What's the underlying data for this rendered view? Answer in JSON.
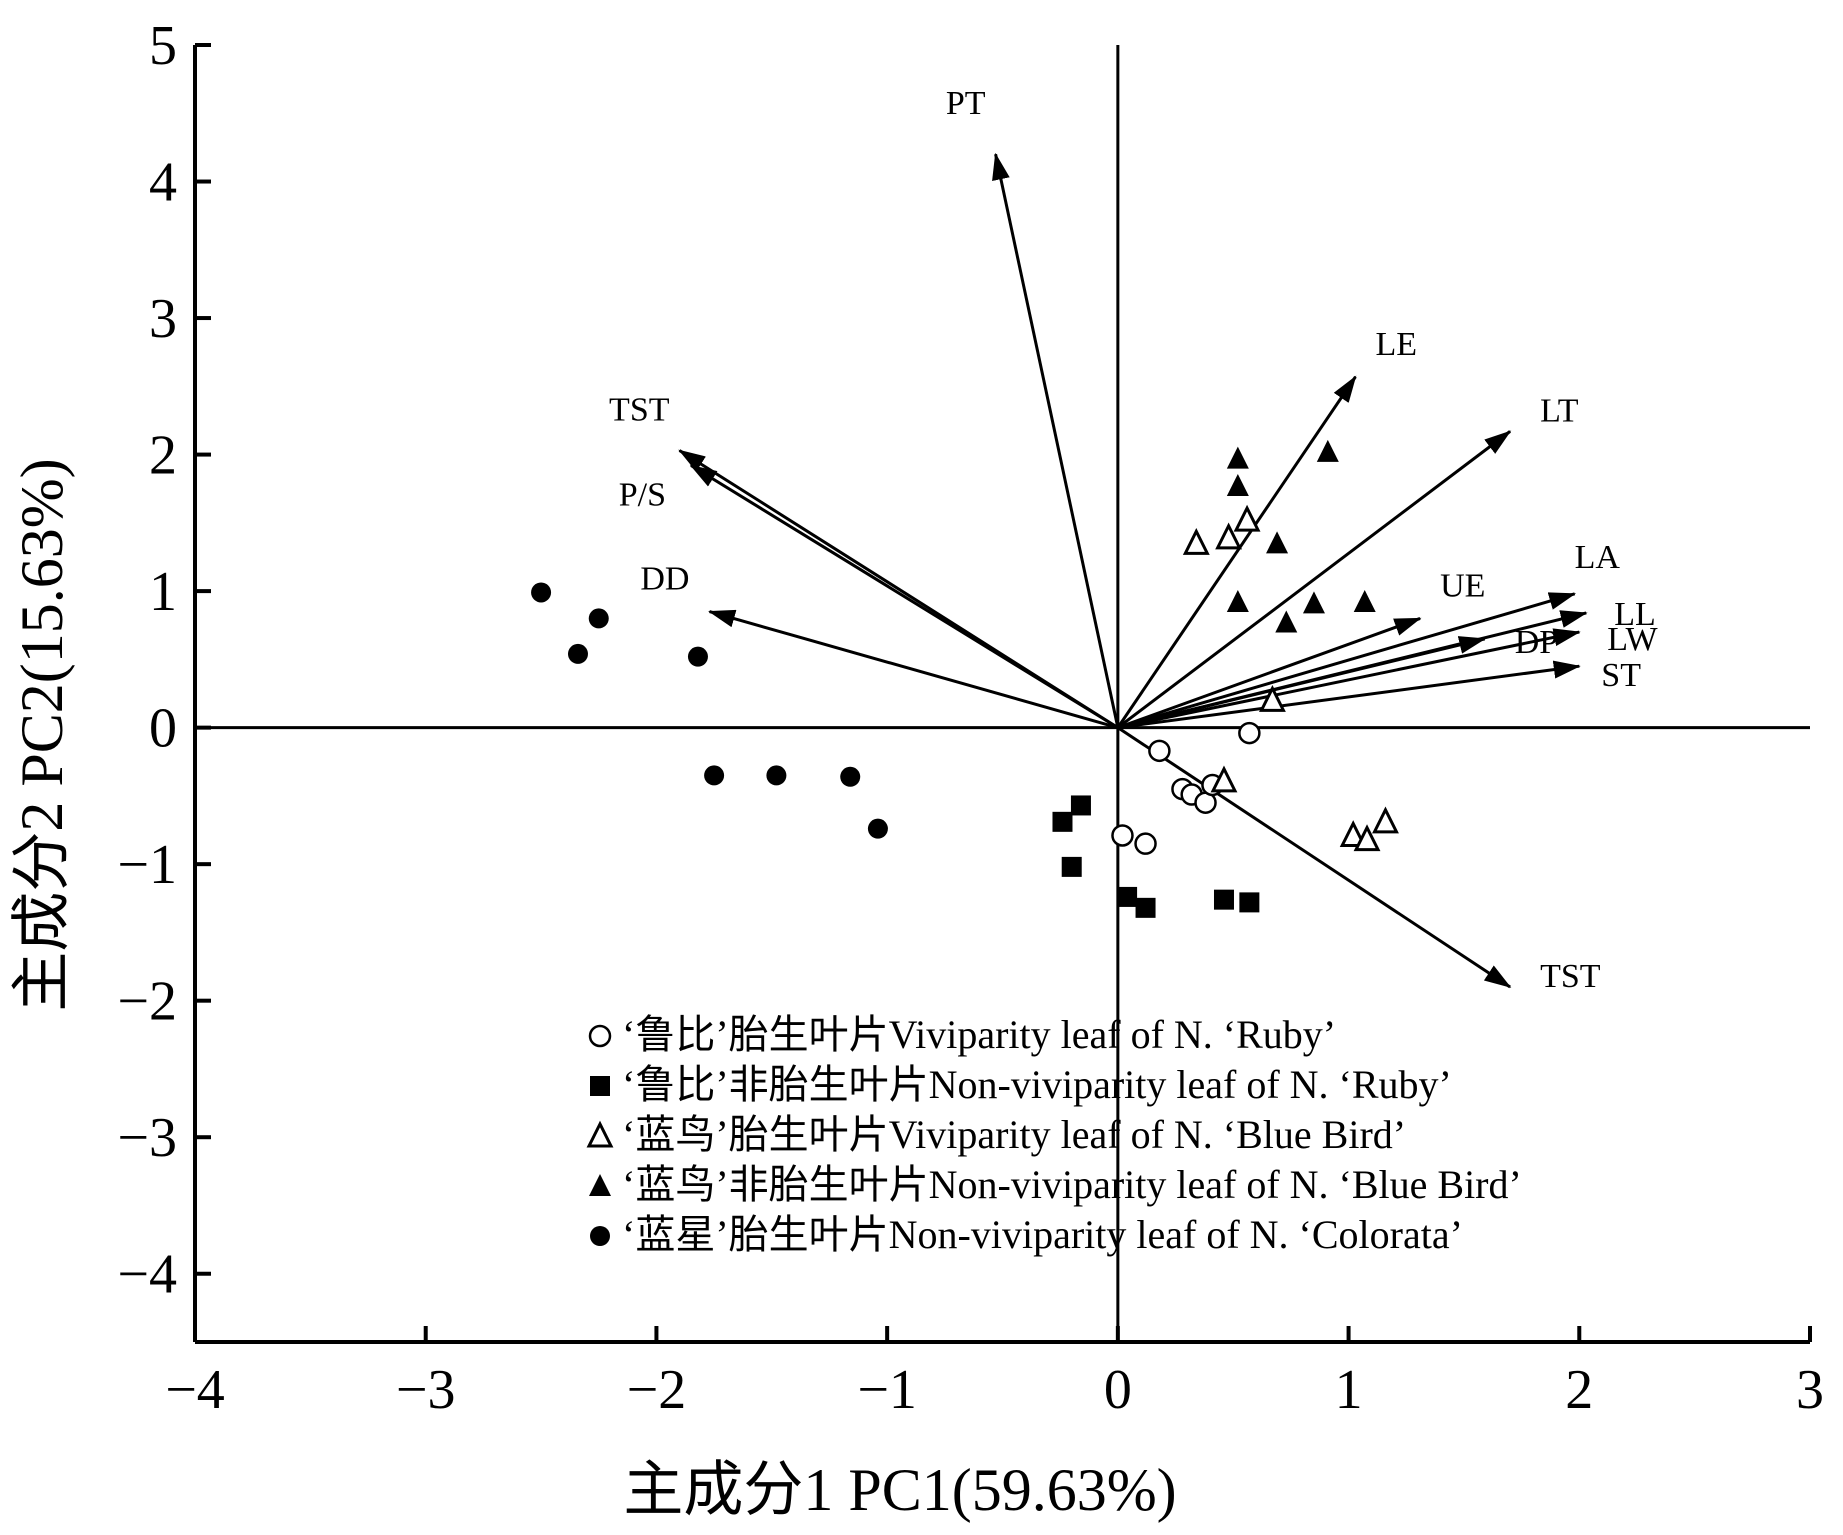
{
  "chart_data": {
    "type": "scatter",
    "subtype": "pca-biplot",
    "xlabel": "主成分1 PC1(59.63%)",
    "ylabel": "主成分2 PC2(15.63%)",
    "xlim": [
      -4,
      3
    ],
    "ylim": [
      -4.5,
      5
    ],
    "xticks": [
      -4,
      -3,
      -2,
      -1,
      0,
      1,
      2,
      3
    ],
    "yticks": [
      5,
      4,
      3,
      2,
      1,
      0,
      -1,
      -2,
      -3,
      -4
    ],
    "xtick_labels": [
      "−4",
      "−3",
      "−2",
      "−1",
      "0",
      "1",
      "2",
      "3"
    ],
    "ytick_labels": [
      "5",
      "4",
      "3",
      "2",
      "1",
      "0",
      "−1",
      "−2",
      "−3",
      "−4"
    ],
    "grid": false,
    "legend_position": "bottom-center",
    "reference_lines": {
      "x": 0,
      "y": 0
    },
    "series": [
      {
        "name": "‘鲁比’胎生叶片Viviparity leaf of N. ‘Ruby’",
        "marker": "circle-open",
        "points": [
          [
            0.18,
            -0.17
          ],
          [
            0.57,
            -0.04
          ],
          [
            0.28,
            -0.45
          ],
          [
            0.32,
            -0.49
          ],
          [
            0.38,
            -0.55
          ],
          [
            0.41,
            -0.42
          ],
          [
            0.02,
            -0.79
          ],
          [
            0.12,
            -0.85
          ]
        ]
      },
      {
        "name": "‘鲁比’非胎生叶片Non-viviparity leaf of N. ‘Ruby’",
        "marker": "square-filled",
        "points": [
          [
            -0.24,
            -0.69
          ],
          [
            -0.16,
            -0.57
          ],
          [
            -0.2,
            -1.02
          ],
          [
            0.04,
            -1.24
          ],
          [
            0.12,
            -1.32
          ],
          [
            0.46,
            -1.26
          ],
          [
            0.57,
            -1.28
          ]
        ]
      },
      {
        "name": "‘蓝鸟’胎生叶片Viviparity leaf of N. ‘Blue Bird’",
        "marker": "triangle-open",
        "points": [
          [
            0.34,
            1.35
          ],
          [
            0.48,
            1.39
          ],
          [
            0.56,
            1.52
          ],
          [
            0.67,
            0.2
          ],
          [
            0.46,
            -0.39
          ],
          [
            1.02,
            -0.79
          ],
          [
            1.08,
            -0.82
          ],
          [
            1.16,
            -0.69
          ]
        ]
      },
      {
        "name": "‘蓝鸟’非胎生叶片Non-viviparity leaf of N. ‘Blue Bird’",
        "marker": "triangle-filled",
        "points": [
          [
            0.52,
            1.97
          ],
          [
            0.52,
            1.77
          ],
          [
            0.91,
            2.02
          ],
          [
            0.69,
            1.35
          ],
          [
            0.52,
            0.92
          ],
          [
            0.73,
            0.77
          ],
          [
            0.85,
            0.91
          ],
          [
            1.07,
            0.92
          ]
        ]
      },
      {
        "name": "‘蓝星’胎生叶片Non-viviparity leaf of N. ‘Colorata’",
        "marker": "circle-filled",
        "points": [
          [
            -2.5,
            0.99
          ],
          [
            -2.25,
            0.8
          ],
          [
            -2.34,
            0.54
          ],
          [
            -1.82,
            0.52
          ],
          [
            -1.75,
            -0.35
          ],
          [
            -1.48,
            -0.35
          ],
          [
            -1.16,
            -0.36
          ],
          [
            -1.04,
            -0.74
          ]
        ]
      }
    ],
    "vectors": [
      {
        "label": "PT",
        "x": -0.53,
        "y": 4.2
      },
      {
        "label": "LE",
        "x": 1.03,
        "y": 2.57
      },
      {
        "label": "LT",
        "x": 1.7,
        "y": 2.17
      },
      {
        "label": "TST",
        "x": -1.9,
        "y": 2.03
      },
      {
        "label": "P/S",
        "x": -1.85,
        "y": 1.92
      },
      {
        "label": "DD",
        "x": -1.77,
        "y": 0.85
      },
      {
        "label": "UE",
        "x": 1.31,
        "y": 0.8
      },
      {
        "label": "LA",
        "x": 1.98,
        "y": 0.98
      },
      {
        "label": "LL",
        "x": 2.03,
        "y": 0.84
      },
      {
        "label": "LW",
        "x": 2.0,
        "y": 0.7
      },
      {
        "label": "DP",
        "x": 1.59,
        "y": 0.65
      },
      {
        "label": "ST",
        "x": 2.0,
        "y": 0.45
      },
      {
        "label": "TST",
        "x": 1.7,
        "y": -1.9
      }
    ]
  }
}
